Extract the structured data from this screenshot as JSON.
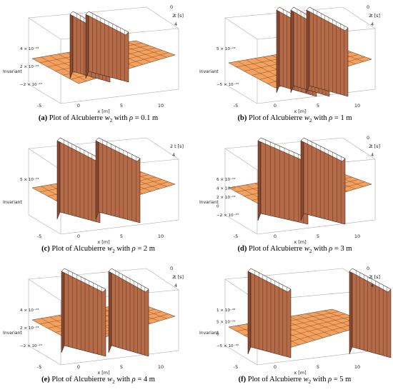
{
  "figure": {
    "panels": [
      {
        "id": "a",
        "label": "(a)",
        "caption_prefix": "Plot of Alcubierre ",
        "w_symbol": "w",
        "w_sub": "2",
        "caption_mid": " with ",
        "rho_symbol": "ρ",
        "rho_value": "= 0.1 m",
        "x_axis_label": "x [m]",
        "x_ticks": [
          "-5",
          "0",
          "5",
          "10"
        ],
        "t_axis_label": "t [s]",
        "t_ticks": [
          "0",
          "2",
          "4"
        ],
        "z_axis_label": "Invariant",
        "z_ticks": [
          "4 × 10⁻²³",
          "2 × 10⁻²³",
          "−2 × 10⁻²³"
        ]
      },
      {
        "id": "b",
        "label": "(b)",
        "caption_prefix": "Plot of Alcubierre ",
        "w_symbol": "w",
        "w_sub": "2",
        "caption_mid": " with ",
        "rho_symbol": "ρ",
        "rho_value": "= 1 m",
        "x_axis_label": "x [m]",
        "x_ticks": [
          "-5",
          "0",
          "5",
          "10"
        ],
        "t_axis_label": "t [s]",
        "t_ticks": [
          "0",
          "2",
          "4"
        ],
        "z_axis_label": "Invariant",
        "z_ticks": [
          "5 × 10⁻²³",
          "−5 × 10⁻²³"
        ]
      },
      {
        "id": "c",
        "label": "(c)",
        "caption_prefix": "Plot of Alcubierre ",
        "w_symbol": "w",
        "w_sub": "2",
        "caption_mid": " with ",
        "rho_symbol": "ρ",
        "rho_value": "= 2 m",
        "x_axis_label": "x [m]",
        "x_ticks": [
          "-5",
          "0",
          "5",
          "10"
        ],
        "t_axis_label": "t [s]",
        "t_ticks": [
          "2",
          "4"
        ],
        "z_axis_label": "Invariant",
        "z_ticks": [
          "5 × 10⁻²³"
        ]
      },
      {
        "id": "d",
        "label": "(d)",
        "caption_prefix": "Plot of Alcubierre ",
        "w_symbol": "w",
        "w_sub": "2",
        "caption_mid": " with ",
        "rho_symbol": "ρ",
        "rho_value": "= 3 m",
        "x_axis_label": "x [m]",
        "x_ticks": [
          "-5",
          "0",
          "5",
          "10"
        ],
        "t_axis_label": "t [s]",
        "t_ticks": [
          "0",
          "2",
          "4"
        ],
        "z_axis_label": "Invariant",
        "z_ticks": [
          "6 × 10⁻²³",
          "4 × 10⁻²³",
          "2 × 10⁻²³",
          "0",
          "−2 × 10⁻²³"
        ]
      },
      {
        "id": "e",
        "label": "(e)",
        "caption_prefix": "Plot of Alcubierre ",
        "w_symbol": "w",
        "w_sub": "2",
        "caption_mid": " with ",
        "rho_symbol": "ρ",
        "rho_value": "= 4 m",
        "x_axis_label": "x [m]",
        "x_ticks": [
          "-5",
          "0",
          "5",
          "10"
        ],
        "t_axis_label": "t [s]",
        "t_ticks": [
          "0",
          "2",
          "4"
        ],
        "z_axis_label": "Invariant",
        "z_ticks": [
          "4 × 10⁻²³",
          "2 × 10⁻²³",
          "−2 × 10⁻²³"
        ]
      },
      {
        "id": "f",
        "label": "(f)",
        "caption_prefix": "Plot of Alcubierre ",
        "w_symbol": "w",
        "w_sub": "2",
        "caption_mid": " with ",
        "rho_symbol": "ρ",
        "rho_value": "= 5 m",
        "x_axis_label": "x [m]",
        "x_ticks": [
          "-5",
          "0",
          "5",
          "10"
        ],
        "t_axis_label": "t [s]",
        "t_ticks": [
          "0",
          "2",
          "4"
        ],
        "z_axis_label": "Invariant",
        "z_ticks": [
          "1 × 10⁻²⁸",
          "5 × 10⁻²⁹",
          "0",
          "−5 × 10⁻²⁹"
        ]
      }
    ],
    "colors": {
      "surface": "#f4a15e",
      "wall": "#8a4a32",
      "grid": "#5a3020"
    }
  }
}
